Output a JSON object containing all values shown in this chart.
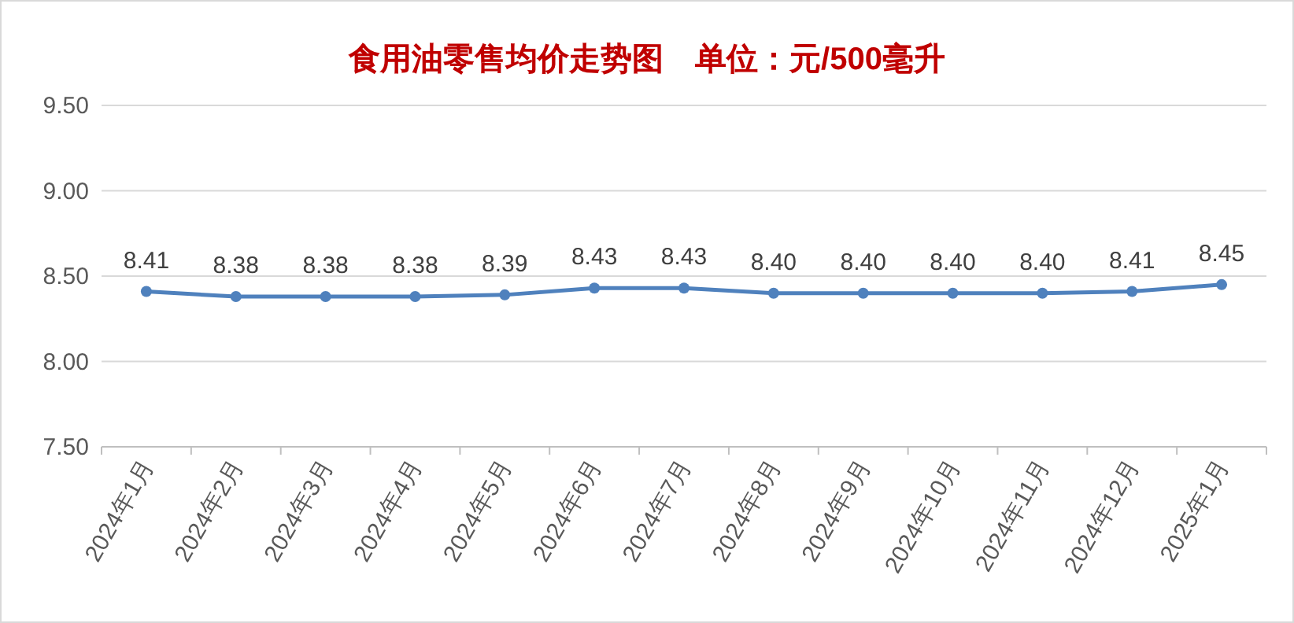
{
  "chart_data": {
    "type": "line",
    "title": "食用油零售均价走势图　单位：元/500毫升",
    "categories": [
      "2024年1月",
      "2024年2月",
      "2024年3月",
      "2024年4月",
      "2024年5月",
      "2024年6月",
      "2024年7月",
      "2024年8月",
      "2024年9月",
      "2024年10月",
      "2024年11月",
      "2024年12月",
      "2025年1月"
    ],
    "series": [
      {
        "color": "#4f81bd",
        "values": [
          8.41,
          8.38,
          8.38,
          8.38,
          8.39,
          8.43,
          8.43,
          8.4,
          8.4,
          8.4,
          8.4,
          8.41,
          8.45
        ],
        "value_labels": [
          "8.41",
          "8.38",
          "8.38",
          "8.38",
          "8.39",
          "8.43",
          "8.43",
          "8.40",
          "8.40",
          "8.40",
          "8.40",
          "8.41",
          "8.45"
        ]
      }
    ],
    "ylim": [
      7.5,
      9.5
    ],
    "yticks": [
      {
        "value": 7.5,
        "label": "7.50"
      },
      {
        "value": 8,
        "label": "8.00"
      },
      {
        "value": 8.5,
        "label": "8.50"
      },
      {
        "value": 9,
        "label": "9.00"
      },
      {
        "value": 9.5,
        "label": "9.50"
      }
    ],
    "grid": "y",
    "marker": "circle",
    "line_style": "solid"
  }
}
